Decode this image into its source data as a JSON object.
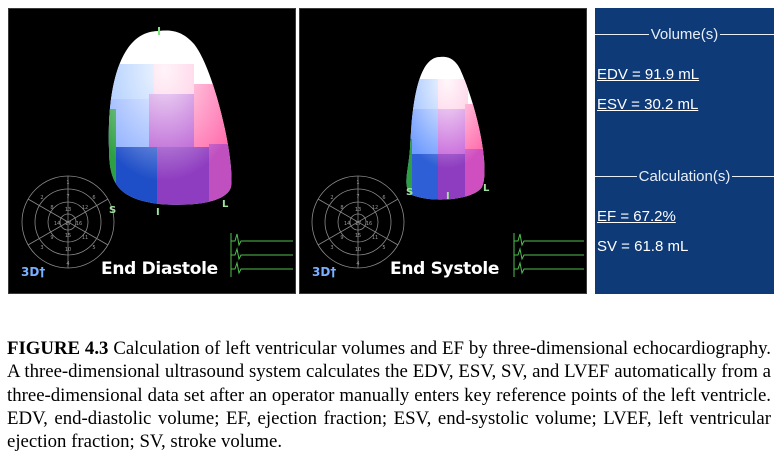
{
  "figure": {
    "panels": [
      {
        "id": "diastole",
        "phase_label": "End Diastole",
        "logo": "3D†",
        "segment_markers": [
          "S",
          "I",
          "L"
        ]
      },
      {
        "id": "systole",
        "phase_label": "End Systole",
        "logo": "3D†",
        "segment_markers": [
          "S",
          "I",
          "L"
        ]
      }
    ],
    "bullseye_numbers": [
      "1",
      "2",
      "3",
      "4",
      "5",
      "6",
      "7",
      "8",
      "9",
      "10",
      "11",
      "12",
      "13",
      "14",
      "15",
      "16",
      "17"
    ],
    "results": {
      "volume_header": "Volume(s)",
      "edv": "EDV = 91.9 mL",
      "esv": "ESV = 30.2 mL",
      "calculation_header": "Calculation(s)",
      "ef": "EF = 67.2%",
      "sv": "SV = 61.8 mL"
    },
    "colors": {
      "results_bg": "#0e3a78",
      "panel_bg": "#000000",
      "segment_green": "#2ea043",
      "segment_blue": "#1f4fc8",
      "segment_purple": "#a03cc0",
      "segment_light_blue": "#8fb8ff",
      "segment_pink": "#ff7fb8"
    }
  },
  "caption": {
    "label": "FIGURE 4.3",
    "text": " Calculation of left ventricular volumes and EF by three-dimensional echocardiography. A three-dimensional ultrasound system calculates the EDV, ESV, SV, and LVEF automatically from a three-dimensional data set after an operator manually enters key reference points of the left ventricle. EDV, end-diastolic volume; EF, ejection fraction; ESV, end-systolic volume; LVEF, left ventricular ejection fraction; SV, stroke volume."
  }
}
